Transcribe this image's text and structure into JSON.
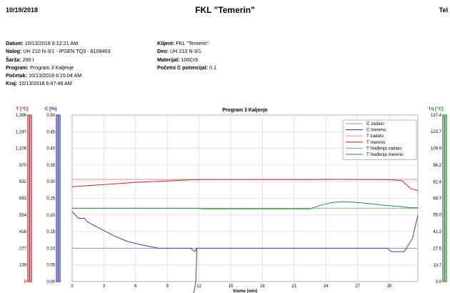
{
  "header": {
    "date": "10/19/2018",
    "title": "FKL \"Temerin\"",
    "right": "Tel"
  },
  "info_left": [
    {
      "label": "Datum:",
      "value": "10/13/2018 6:12:21 AM"
    },
    {
      "label": "Nalog:",
      "value": "UH 210 N-3/1 - IPSEN TQ3 - 8109403"
    },
    {
      "label": "Šarža:",
      "value": "200 I"
    },
    {
      "label": "Program:",
      "value": "Program 3 Kaljenje"
    },
    {
      "label": "Početak:",
      "value": "10/13/2018 6:15:04 AM"
    },
    {
      "label": "Kraj:",
      "value": "10/13/2018 6:47:48 AM"
    }
  ],
  "info_right": [
    {
      "label": "Klijent:",
      "value": "FKL \"Temerin\""
    },
    {
      "label": "Deo:",
      "value": "UH 210 N-3/1"
    },
    {
      "label": "Materijal:",
      "value": "100Cr6"
    },
    {
      "label": "Početni C potencijal:",
      "value": "0.1"
    }
  ],
  "colors": {
    "t_axis": "#b02020",
    "c_axis": "#1f2e9c",
    "tq_axis": "#1e7a2a",
    "c_zadato": "#8c90c8",
    "c_mereno": "#3a45a8",
    "t_zadato": "#f08a8a",
    "t_mereno": "#b53030",
    "th_zadato": "#74c474",
    "th_mereno": "#2e8b3c"
  },
  "chart_data": {
    "type": "line",
    "title": "Program 3 Kaljenje",
    "xlabel": "Vreme [min]",
    "xlim": [
      0,
      32.7
    ],
    "x_ticks": [
      "0",
      "3",
      "6",
      "9",
      "12",
      "15",
      "18",
      "21",
      "24",
      "27",
      "30"
    ],
    "axes": {
      "t": {
        "label": "T [°C]",
        "ylim": [
          0,
          1386
        ],
        "ticks": [
          "0",
          "139",
          "277",
          "416",
          "554",
          "693",
          "832",
          "970",
          "1,109",
          "1,247",
          "1,386"
        ]
      },
      "c": {
        "label": "C [%]",
        "ylim": [
          0,
          0.5
        ],
        "ticks": [
          "0.00",
          "0.05",
          "0.10",
          "0.15",
          "0.20",
          "0.25",
          "0.30",
          "0.35",
          "0.40",
          "0.45",
          "0.50"
        ]
      },
      "tq": {
        "label": "Tq [°C]",
        "ylim": [
          0,
          137.4
        ],
        "ticks": [
          "0.0",
          "13.7",
          "27.5",
          "41.2",
          "55.0",
          "68.7",
          "82.4",
          "96.2",
          "109.9",
          "123.7",
          "137.4"
        ]
      }
    },
    "legend": {
      "position": "top-right"
    },
    "series": [
      {
        "name": "C zadato",
        "axis": "c",
        "color_key": "c_zadato",
        "points": [
          [
            0,
            0.1
          ],
          [
            32.7,
            0.1
          ]
        ]
      },
      {
        "name": "C mereno",
        "axis": "c",
        "color_key": "c_mereno",
        "points": [
          [
            0,
            0.21
          ],
          [
            0.6,
            0.19
          ],
          [
            1.2,
            0.19
          ],
          [
            1.4,
            0.18
          ],
          [
            2.0,
            0.17
          ],
          [
            2.6,
            0.16
          ],
          [
            3.2,
            0.15
          ],
          [
            3.8,
            0.14
          ],
          [
            4.5,
            0.13
          ],
          [
            5.3,
            0.12
          ],
          [
            6.6,
            0.11
          ],
          [
            8.2,
            0.1
          ],
          [
            11.2,
            0.1
          ],
          [
            11.6,
            0.09
          ],
          [
            11.8,
            0.1
          ],
          [
            29.8,
            0.1
          ],
          [
            30.2,
            0.09
          ],
          [
            31.4,
            0.09
          ],
          [
            32.2,
            0.13
          ],
          [
            32.7,
            0.2
          ]
        ]
      },
      {
        "name": "T zadato",
        "axis": "t",
        "color_key": "t_zadato",
        "points": [
          [
            0,
            850
          ],
          [
            32.7,
            850
          ]
        ]
      },
      {
        "name": "T mereno",
        "axis": "t",
        "color_key": "t_mereno",
        "points": [
          [
            0,
            790
          ],
          [
            3,
            808
          ],
          [
            6,
            825
          ],
          [
            9,
            838
          ],
          [
            11.5,
            848
          ],
          [
            14,
            850
          ],
          [
            23,
            848
          ],
          [
            24,
            851
          ],
          [
            30,
            848
          ],
          [
            31.2,
            840
          ],
          [
            32,
            775
          ],
          [
            32.7,
            758
          ]
        ]
      },
      {
        "name": "T hlađenja zadato",
        "axis": "tq",
        "color_key": "th_zadato",
        "points": [
          [
            0,
            60.5
          ],
          [
            32.7,
            60.5
          ]
        ]
      },
      {
        "name": "T hlađenja mereno",
        "axis": "tq",
        "color_key": "th_mereno",
        "points": [
          [
            0,
            60.5
          ],
          [
            12,
            60.5
          ],
          [
            12.4,
            60
          ],
          [
            22.5,
            60
          ],
          [
            23.5,
            63
          ],
          [
            24.5,
            65
          ],
          [
            25.5,
            66
          ],
          [
            26.5,
            65.5
          ],
          [
            28,
            64.5
          ],
          [
            29.5,
            63
          ],
          [
            31,
            62
          ],
          [
            32,
            61
          ],
          [
            32.7,
            61
          ]
        ]
      },
      {
        "name": "",
        "axis": "c",
        "color_key": "c_mereno",
        "points": [
          [
            11.4,
            -0.05
          ],
          [
            11.7,
            0.0
          ],
          [
            11.8,
            0.1
          ]
        ]
      }
    ]
  }
}
